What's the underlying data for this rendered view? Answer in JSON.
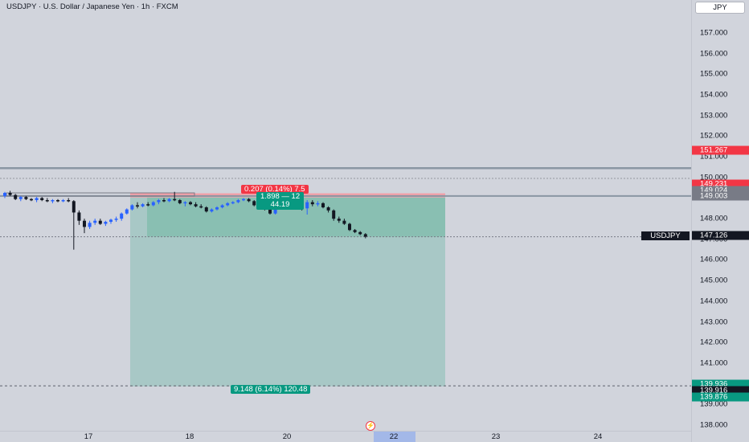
{
  "header": {
    "symbol_title": "USDJPY · U.S. Dollar / Japanese Yen · 1h · FXCM"
  },
  "price_axis": {
    "currency_button": "JPY",
    "ticks": [
      "157.000",
      "156.000",
      "155.000",
      "154.000",
      "153.000",
      "152.000",
      "151.000",
      "150.000",
      "149.000",
      "148.000",
      "147.000",
      "146.000",
      "145.000",
      "144.000",
      "143.000",
      "142.000",
      "141.000",
      "140.000",
      "139.000",
      "138.000"
    ],
    "tags": [
      {
        "label": "151.267",
        "color": "#f23645"
      },
      {
        "label": "149.231",
        "color": "#f23645"
      },
      {
        "label": "149.024",
        "color": "#787b86"
      },
      {
        "label": "149.003",
        "color": "#787b86"
      },
      {
        "label": "147.126",
        "color": "#131722"
      },
      {
        "label": "139.936",
        "color": "#089981"
      },
      {
        "label": "139.916",
        "color": "#131722"
      },
      {
        "label": "139.876",
        "color": "#089981"
      }
    ]
  },
  "time_axis": {
    "labels": [
      "17",
      "18",
      "20",
      "22",
      "23",
      "24"
    ]
  },
  "position": {
    "stop_label": "0.207 (0.14%) 7.5",
    "entry_label_line1": "1.898 — 12",
    "entry_label_line2": "44.19",
    "target_label": "9.148 (6.14%) 120.48"
  },
  "symbol_tag": "USDJPY",
  "colors": {
    "background": "#d1d4dc",
    "profit_zone": "#a8c8c6",
    "profit_zone_active": "#89bfb2",
    "loss_zone": "#f2a0a8",
    "bull": "#2962ff",
    "bear": "#131722",
    "stop": "#f23645",
    "target": "#089981"
  },
  "chart_data": {
    "type": "candlestick",
    "symbol": "USDJPY",
    "interval": "1h",
    "ylim": [
      137.8,
      158.0
    ],
    "candles": [
      [
        149.1,
        149.3,
        149.0,
        149.25
      ],
      [
        149.25,
        149.35,
        149.1,
        149.15
      ],
      [
        149.15,
        149.2,
        148.9,
        148.95
      ],
      [
        148.95,
        149.1,
        148.85,
        149.05
      ],
      [
        149.05,
        149.1,
        148.9,
        148.95
      ],
      [
        148.95,
        149.0,
        148.85,
        148.9
      ],
      [
        148.9,
        149.05,
        148.8,
        149.0
      ],
      [
        149.0,
        149.05,
        148.85,
        148.9
      ],
      [
        148.9,
        149.0,
        148.8,
        148.85
      ],
      [
        148.85,
        148.95,
        148.75,
        148.9
      ],
      [
        148.9,
        148.95,
        148.8,
        148.85
      ],
      [
        148.85,
        148.95,
        148.8,
        148.9
      ],
      [
        148.9,
        149.0,
        148.8,
        148.85
      ],
      [
        148.85,
        148.9,
        146.5,
        148.3
      ],
      [
        148.3,
        148.4,
        147.7,
        147.9
      ],
      [
        147.9,
        148.0,
        147.3,
        147.6
      ],
      [
        147.6,
        147.9,
        147.5,
        147.8
      ],
      [
        147.8,
        148.0,
        147.7,
        147.9
      ],
      [
        147.9,
        148.0,
        147.7,
        147.75
      ],
      [
        147.75,
        147.9,
        147.65,
        147.85
      ],
      [
        147.85,
        148.0,
        147.75,
        147.95
      ],
      [
        147.95,
        148.1,
        147.85,
        148.0
      ],
      [
        148.0,
        148.3,
        147.9,
        148.25
      ],
      [
        148.25,
        148.5,
        148.2,
        148.45
      ],
      [
        148.45,
        148.7,
        148.4,
        148.65
      ],
      [
        148.65,
        148.8,
        148.5,
        148.6
      ],
      [
        148.6,
        148.75,
        148.55,
        148.7
      ],
      [
        148.7,
        148.8,
        148.6,
        148.65
      ],
      [
        148.65,
        148.85,
        148.6,
        148.8
      ],
      [
        148.8,
        148.95,
        148.7,
        148.9
      ],
      [
        148.9,
        149.0,
        148.8,
        148.85
      ],
      [
        148.85,
        149.0,
        148.8,
        148.95
      ],
      [
        148.95,
        149.3,
        148.85,
        148.9
      ],
      [
        148.9,
        148.95,
        148.7,
        148.75
      ],
      [
        148.75,
        148.85,
        148.6,
        148.8
      ],
      [
        148.8,
        148.85,
        148.65,
        148.7
      ],
      [
        148.7,
        148.8,
        148.55,
        148.6
      ],
      [
        148.6,
        148.7,
        148.5,
        148.55
      ],
      [
        148.55,
        148.6,
        148.3,
        148.35
      ],
      [
        148.35,
        148.5,
        148.3,
        148.45
      ],
      [
        148.45,
        148.6,
        148.4,
        148.55
      ],
      [
        148.55,
        148.7,
        148.5,
        148.65
      ],
      [
        148.65,
        148.8,
        148.6,
        148.75
      ],
      [
        148.75,
        148.85,
        148.7,
        148.8
      ],
      [
        148.8,
        148.95,
        148.75,
        148.9
      ],
      [
        148.9,
        149.0,
        148.85,
        148.95
      ],
      [
        148.95,
        149.0,
        148.8,
        148.85
      ],
      [
        148.85,
        148.9,
        148.6,
        148.65
      ],
      [
        148.65,
        148.75,
        148.55,
        148.7
      ],
      [
        148.7,
        148.75,
        148.4,
        148.45
      ],
      [
        148.45,
        148.5,
        148.2,
        148.25
      ],
      [
        148.25,
        148.6,
        148.2,
        148.55
      ],
      [
        148.55,
        148.9,
        148.5,
        148.85
      ],
      [
        148.85,
        149.1,
        148.8,
        149.05
      ],
      [
        149.05,
        149.1,
        148.9,
        148.95
      ],
      [
        148.95,
        149.05,
        148.85,
        149.0
      ],
      [
        149.0,
        149.1,
        148.4,
        148.5
      ],
      [
        148.5,
        148.9,
        148.2,
        148.8
      ],
      [
        148.8,
        148.9,
        148.6,
        148.7
      ],
      [
        148.7,
        148.85,
        148.6,
        148.75
      ],
      [
        148.75,
        148.8,
        148.5,
        148.55
      ],
      [
        148.55,
        148.6,
        148.3,
        148.4
      ],
      [
        148.4,
        148.45,
        147.9,
        148.0
      ],
      [
        148.0,
        148.1,
        147.8,
        147.9
      ],
      [
        147.9,
        148.0,
        147.7,
        147.75
      ],
      [
        147.75,
        147.8,
        147.4,
        147.45
      ],
      [
        147.45,
        147.5,
        147.3,
        147.35
      ],
      [
        147.35,
        147.4,
        147.2,
        147.25
      ],
      [
        147.25,
        147.3,
        147.05,
        147.126
      ]
    ],
    "lines": [
      {
        "name": "resistance",
        "price": 150.45,
        "style": "solid"
      },
      {
        "name": "upper-dotted",
        "price": 149.95,
        "style": "dotted"
      },
      {
        "name": "stop-line",
        "price": 149.1,
        "style": "solid"
      },
      {
        "name": "last-price",
        "price": 147.126,
        "style": "dotted"
      },
      {
        "name": "target-line",
        "price": 139.9,
        "style": "dashed"
      }
    ],
    "position_tool": {
      "side": "long",
      "entry": 149.024,
      "stop": 149.231,
      "target": 139.876
    }
  }
}
